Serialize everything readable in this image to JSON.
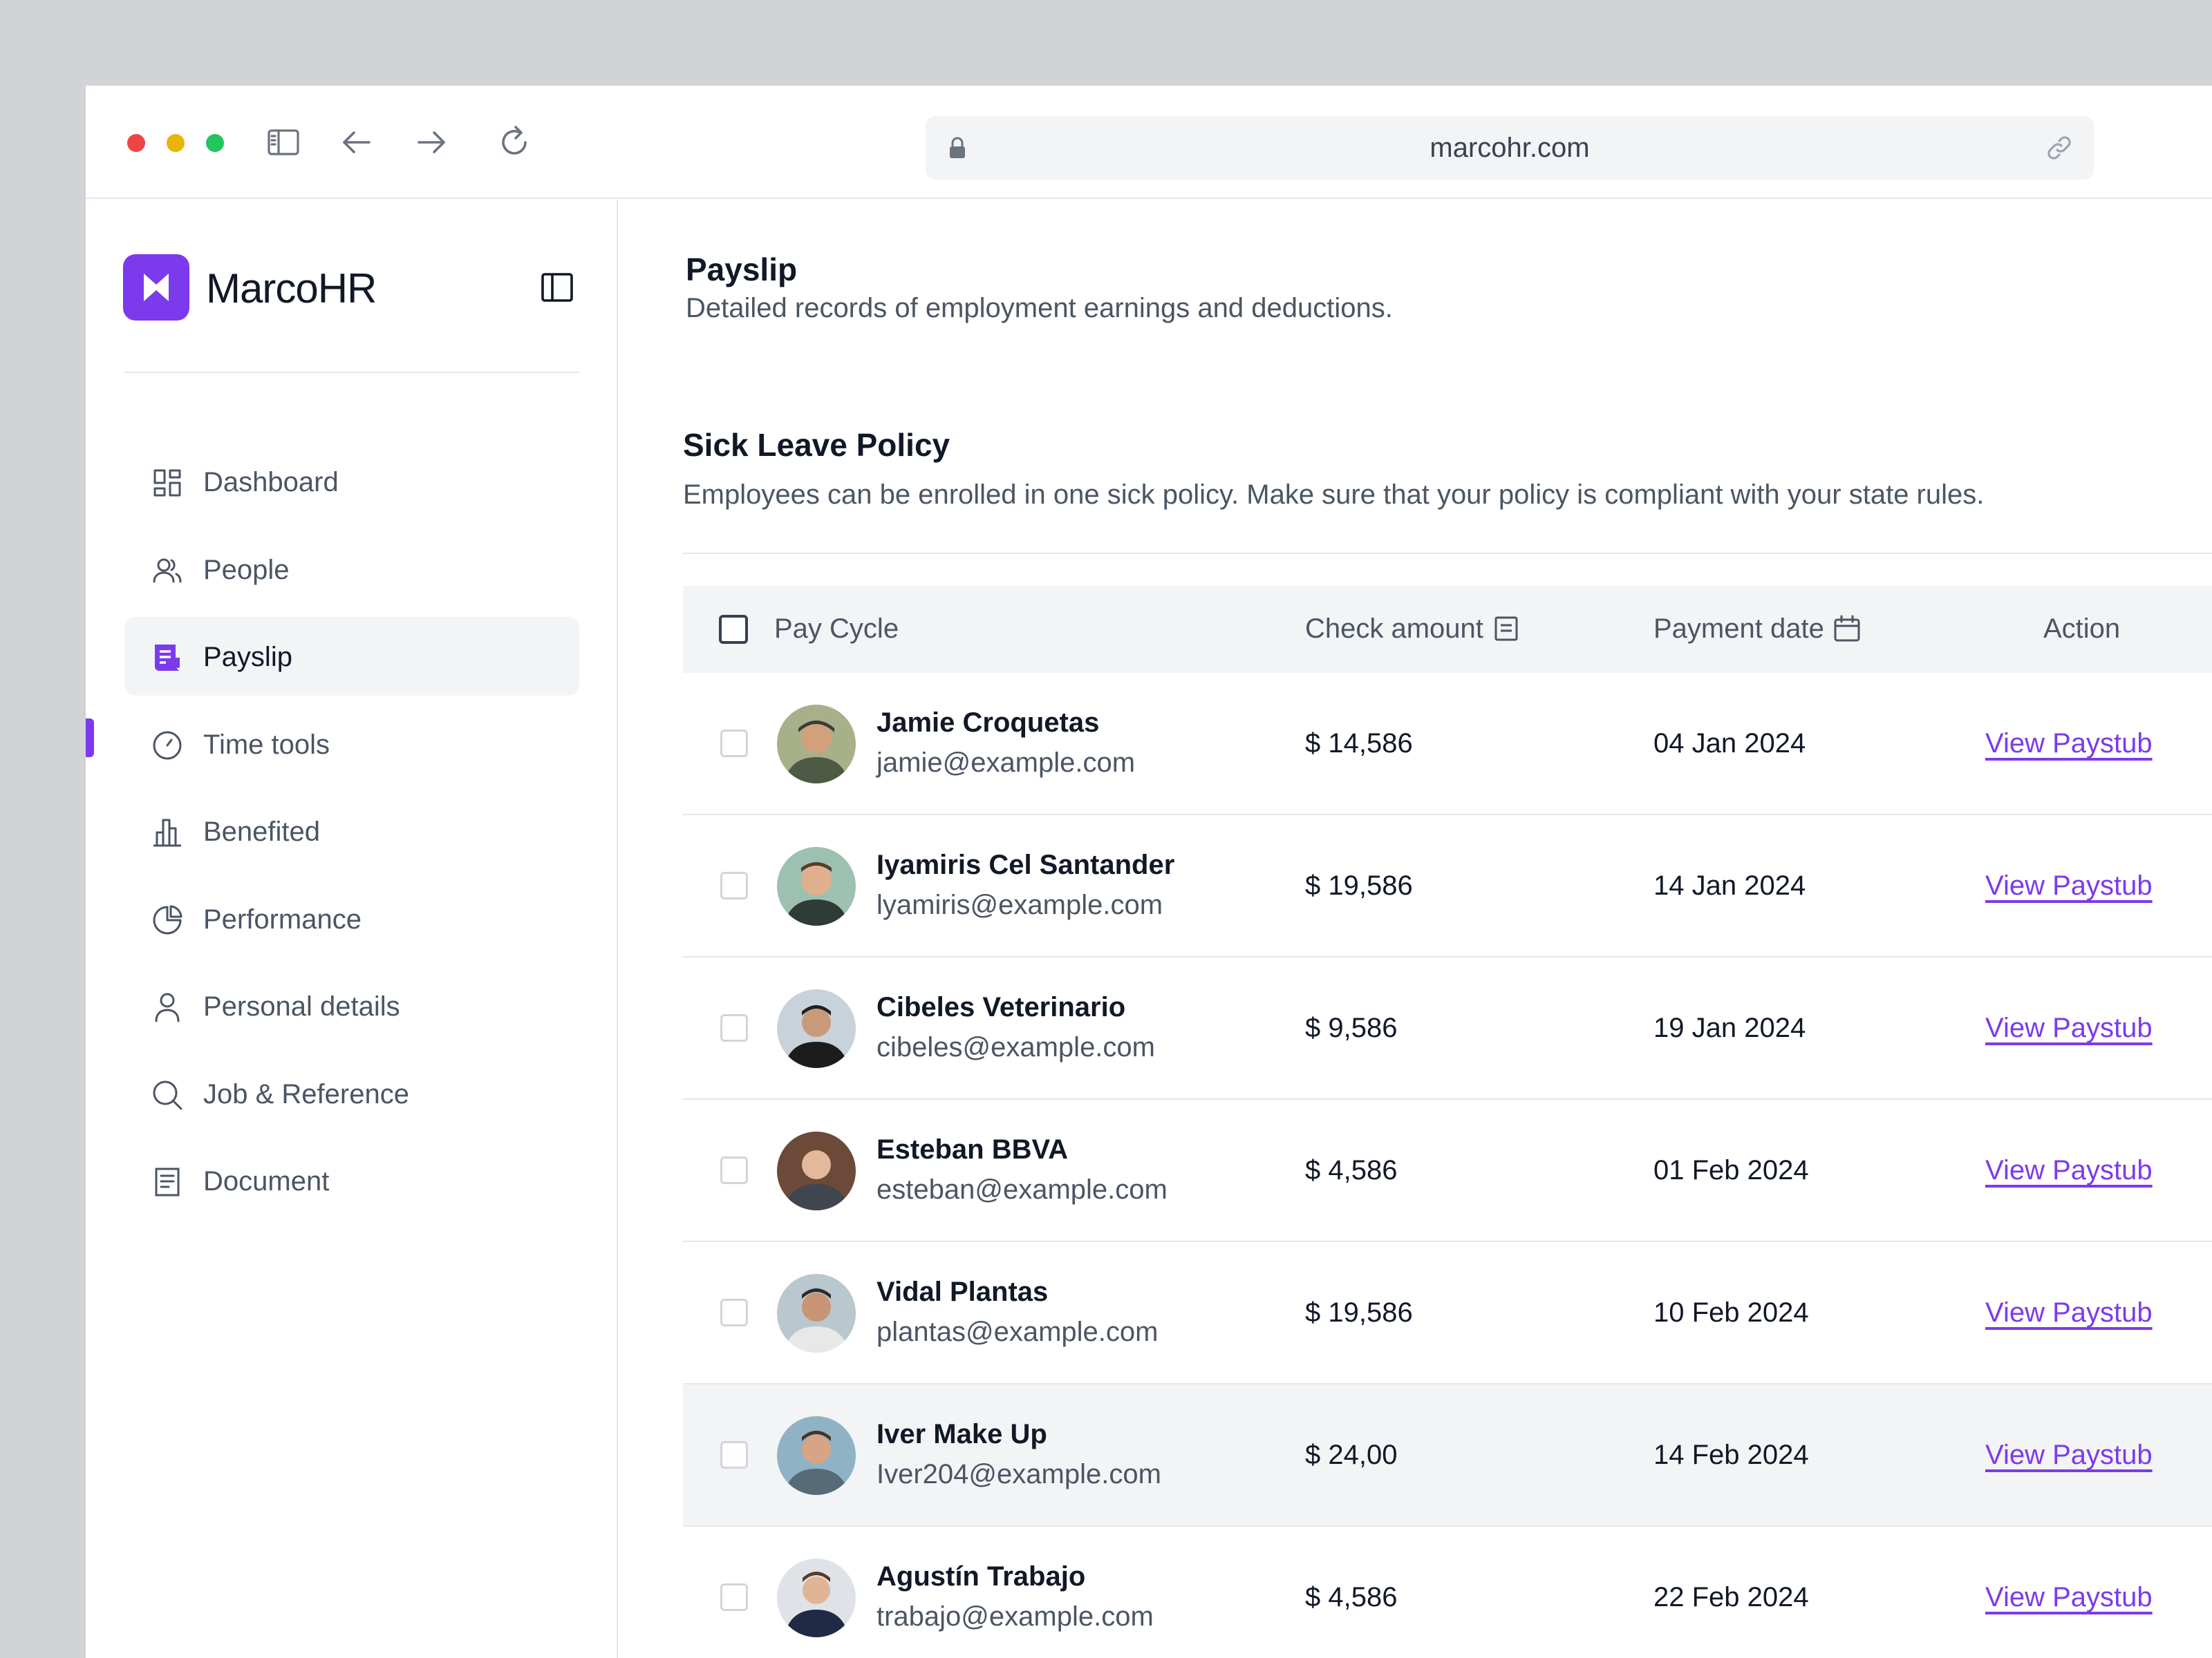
{
  "browser": {
    "url": "marcohr.com",
    "icons": [
      "sidebar-toggle-icon",
      "back-arrow-icon",
      "forward-arrow-icon",
      "reload-icon",
      "lock-icon",
      "link-icon"
    ]
  },
  "sidebar": {
    "brand": "MarcoHR",
    "accent_color": "#7c3aed",
    "items": [
      {
        "label": "Dashboard",
        "icon": "dashboard-icon"
      },
      {
        "label": "People",
        "icon": "people-icon"
      },
      {
        "label": "Payslip",
        "icon": "payslip-icon",
        "active": true
      },
      {
        "label": "Time tools",
        "icon": "clock-icon"
      },
      {
        "label": "Benefited",
        "icon": "bar-chart-icon"
      },
      {
        "label": "Performance",
        "icon": "pie-chart-icon"
      },
      {
        "label": "Personal details",
        "icon": "person-icon"
      },
      {
        "label": "Job & Reference",
        "icon": "search-icon"
      },
      {
        "label": "Document",
        "icon": "document-icon"
      }
    ]
  },
  "header": {
    "title": "Payslip",
    "subtitle": "Detailed records of employment earnings and deductions."
  },
  "section": {
    "title": "Sick Leave Policy",
    "description": "Employees can be enrolled in one sick policy. Make sure that your policy is compliant with your state rules."
  },
  "table": {
    "columns": {
      "pay_cycle": "Pay Cycle",
      "check_amount": "Check amount",
      "payment_date": "Payment date",
      "action": "Action"
    },
    "rows": [
      {
        "name": "Jamie Croquetas",
        "email": "jamie@example.com",
        "amount": "$ 14,586",
        "date": "04 Jan 2024",
        "action": "View Paystub"
      },
      {
        "name": "Iyamiris Cel Santander",
        "email": "lyamiris@example.com",
        "amount": "$ 19,586",
        "date": "14 Jan 2024",
        "action": "View Paystub"
      },
      {
        "name": "Cibeles Veterinario",
        "email": "cibeles@example.com",
        "amount": "$ 9,586",
        "date": "19 Jan 2024",
        "action": "View Paystub"
      },
      {
        "name": "Esteban BBVA",
        "email": "esteban@example.com",
        "amount": "$ 4,586",
        "date": "01 Feb 2024",
        "action": "View Paystub"
      },
      {
        "name": "Vidal Plantas",
        "email": "plantas@example.com",
        "amount": "$ 19,586",
        "date": "10 Feb 2024",
        "action": "View Paystub"
      },
      {
        "name": "Iver Make Up",
        "email": "Iver204@example.com",
        "amount": "$ 24,00",
        "date": "14 Feb 2024",
        "action": "View Paystub",
        "highlighted": true
      },
      {
        "name": "Agustín Trabajo",
        "email": "trabajo@example.com",
        "amount": "$ 4,586",
        "date": "22 Feb 2024",
        "action": "View Paystub"
      }
    ]
  }
}
